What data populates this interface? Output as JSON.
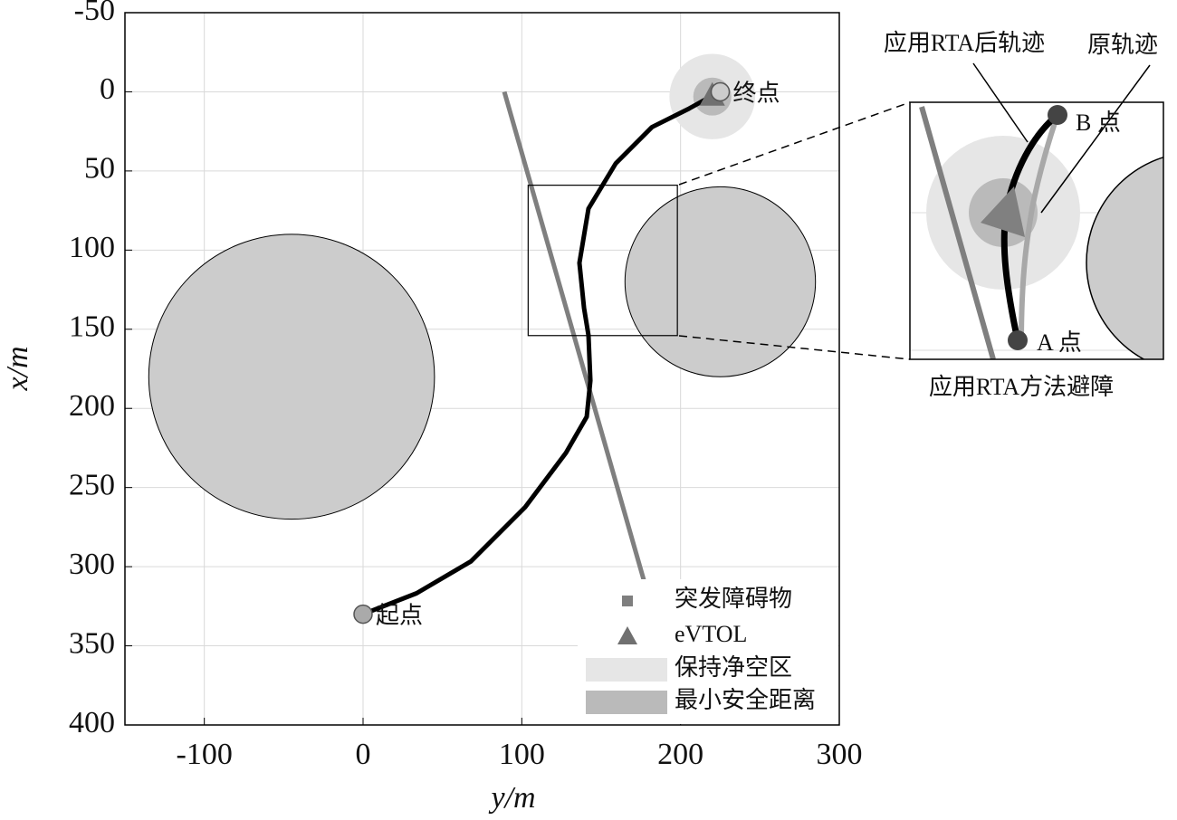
{
  "chart_data": {
    "type": "trajectory",
    "xlabel": "y/m",
    "ylabel": "x/m",
    "xlim": [
      -150,
      300
    ],
    "xticks": [
      -100,
      0,
      100,
      200,
      300
    ],
    "ylim": [
      -50,
      400
    ],
    "yticks": [
      -50,
      0,
      50,
      100,
      150,
      200,
      250,
      300,
      350,
      400
    ],
    "y_inverted": true,
    "grid": true,
    "legend": "lower right",
    "obstacles": {
      "color": "#cccccc",
      "items": [
        {
          "center": [
            -45,
            180
          ],
          "radius": 90
        },
        {
          "center": [
            225,
            120
          ],
          "radius": 60
        }
      ]
    },
    "sudden_obstacle": {
      "name": "突发障碍物",
      "color": "#7f7f7f",
      "y": [
        89,
        177
      ],
      "x": [
        0,
        309
      ]
    },
    "evtol": {
      "name": "eVTOL",
      "color": "#707070",
      "position": [
        220,
        3
      ]
    },
    "clearance_zone": {
      "name": "保持净空区",
      "color": "#e6e6e6",
      "radius": 27
    },
    "min_safe_distance": {
      "name": "最小安全距离",
      "color": "#bababa",
      "radius": 12
    },
    "trajectory": {
      "color": "#000000",
      "y": [
        0,
        33.7,
        67.9,
        102.1,
        127.8,
        140.9,
        143.2,
        142.0,
        139.2,
        136.3,
        142.0,
        159.2,
        182.0,
        204.8,
        219
      ],
      "x": [
        330,
        316.8,
        296.7,
        262.4,
        228.1,
        205.3,
        182.4,
        153.8,
        136.6,
        108.1,
        73.8,
        45.2,
        22.3,
        10.9,
        3
      ]
    },
    "start": {
      "label": "起点",
      "y": 0,
      "x": 330
    },
    "end": {
      "label": "终点",
      "y": 225,
      "x": 0
    },
    "zoom_box": {
      "y": [
        104,
        198
      ],
      "x": [
        59,
        154
      ]
    },
    "inset": {
      "rta_trajectory_label": "应用RTA后轨迹",
      "original_trajectory_label": "原轨迹",
      "point_b_label": "B 点",
      "point_a_label": "A 点",
      "caption": "应用RTA方法避障"
    }
  }
}
